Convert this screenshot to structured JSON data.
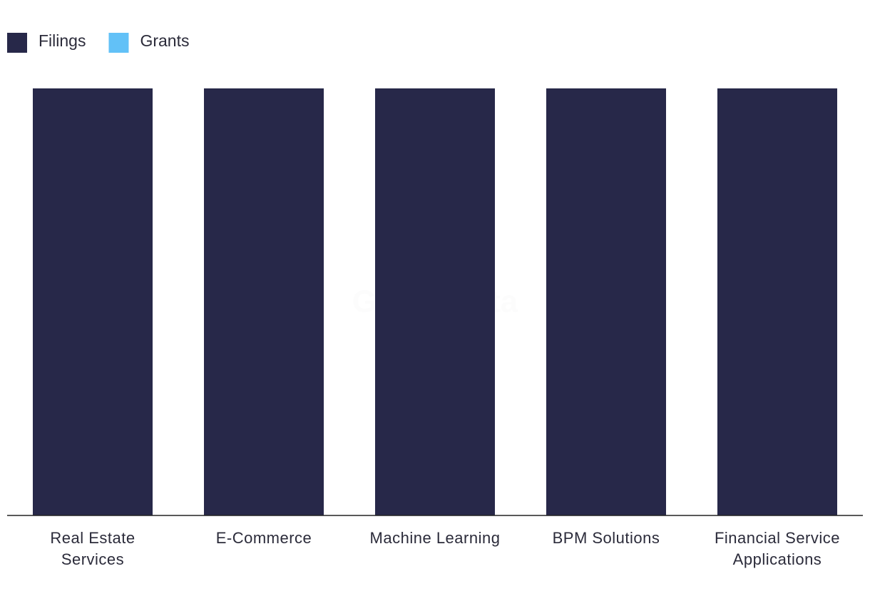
{
  "chart_data": {
    "type": "bar",
    "stacked": true,
    "watermark": "GlobalData",
    "categories": [
      "Real Estate Services",
      "E-Commerce",
      "Machine Learning",
      "BPM Solutions",
      "Financial Service Applications"
    ],
    "series": [
      {
        "name": "Filings",
        "color": "#272849",
        "values": [
          100,
          100,
          100,
          100,
          100
        ]
      },
      {
        "name": "Grants",
        "color": "#62c1f7",
        "values": [
          0,
          0,
          0,
          0,
          0
        ]
      }
    ],
    "ylim": [
      0,
      100
    ],
    "legend": "top-left"
  }
}
